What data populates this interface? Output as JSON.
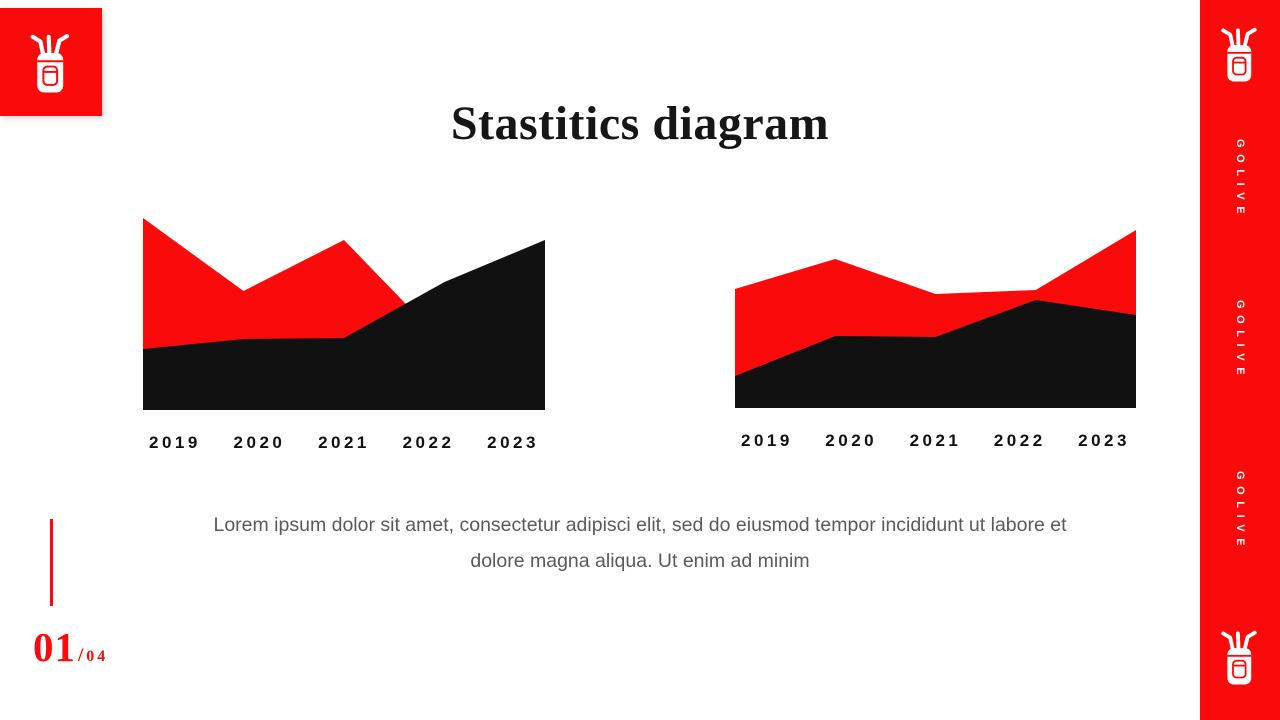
{
  "slide": {
    "title": "Stastitics diagram",
    "description": [
      "Lorem ipsum dolor sit amet, consectetur adipisci elit, sed do eiusmod tempor incididunt ut labore et",
      "dolore magna aliqua. Ut enim ad minim"
    ],
    "page": {
      "current": "01",
      "separator": "/",
      "total": "04"
    }
  },
  "sidebar": {
    "items": [
      {
        "label": "GOLIVE"
      },
      {
        "label": "GOLIVE"
      },
      {
        "label": "GOLIVE"
      }
    ]
  },
  "colors": {
    "accent": "#fa0a0a",
    "ink": "#111111",
    "muted_text": "#5a5a5a"
  },
  "chart_data": [
    {
      "type": "area",
      "title": "",
      "categories": [
        "2019",
        "2020",
        "2021",
        "2022",
        "2023"
      ],
      "series": [
        {
          "name": "red-area",
          "color": "#fa0a0a",
          "values": [
            192,
            119,
            170,
            66,
            14
          ]
        },
        {
          "name": "black-area",
          "color": "#111111",
          "values": [
            61,
            71,
            72,
            128,
            170
          ]
        }
      ],
      "xlabel": "",
      "ylabel": "",
      "ylim": [
        0,
        198
      ],
      "grid": false,
      "legend": false,
      "note": "values are relative heights above baseline; black series drawn on top of red"
    },
    {
      "type": "area",
      "title": "",
      "categories": [
        "2019",
        "2020",
        "2021",
        "2022",
        "2023"
      ],
      "series": [
        {
          "name": "red-area",
          "color": "#fa0a0a",
          "values": [
            119,
            149,
            114,
            118,
            178
          ]
        },
        {
          "name": "black-area",
          "color": "#111111",
          "values": [
            32,
            72,
            71,
            108,
            93
          ]
        }
      ],
      "xlabel": "",
      "ylabel": "",
      "ylim": [
        0,
        180
      ],
      "grid": false,
      "legend": false,
      "note": "values are relative heights above baseline; black series drawn on top of red"
    }
  ]
}
